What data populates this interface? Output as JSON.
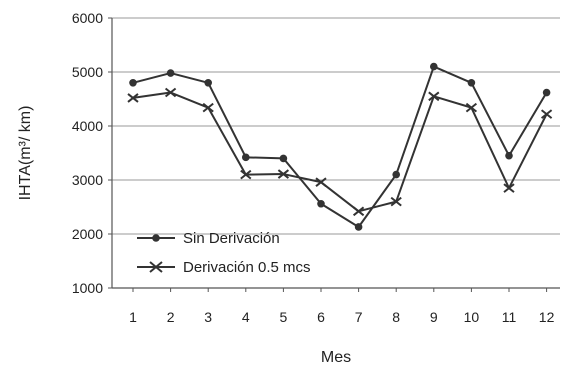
{
  "chart_data": {
    "type": "line",
    "title": "",
    "xlabel": "Mes",
    "ylabel": "IHTA(m³/ km)",
    "categories": [
      "1",
      "2",
      "3",
      "4",
      "5",
      "6",
      "7",
      "8",
      "9",
      "10",
      "11",
      "12"
    ],
    "ylim": [
      1000,
      6000
    ],
    "yticks": [
      "1000",
      "2000",
      "3000",
      "4000",
      "5000",
      "6000"
    ],
    "grid": "horizontal",
    "legend_position": "bottom-left",
    "series": [
      {
        "name": "Sin Derivación",
        "marker": "circle",
        "color": "#333333",
        "values": [
          4800,
          4980,
          4800,
          3420,
          3400,
          2560,
          2130,
          3100,
          5100,
          4800,
          3450,
          4620
        ]
      },
      {
        "name": "Derivación 0.5 mcs",
        "marker": "x",
        "color": "#333333",
        "values": [
          4520,
          4620,
          4340,
          3100,
          3110,
          2960,
          2420,
          2600,
          4550,
          4340,
          2850,
          4220
        ]
      }
    ]
  }
}
